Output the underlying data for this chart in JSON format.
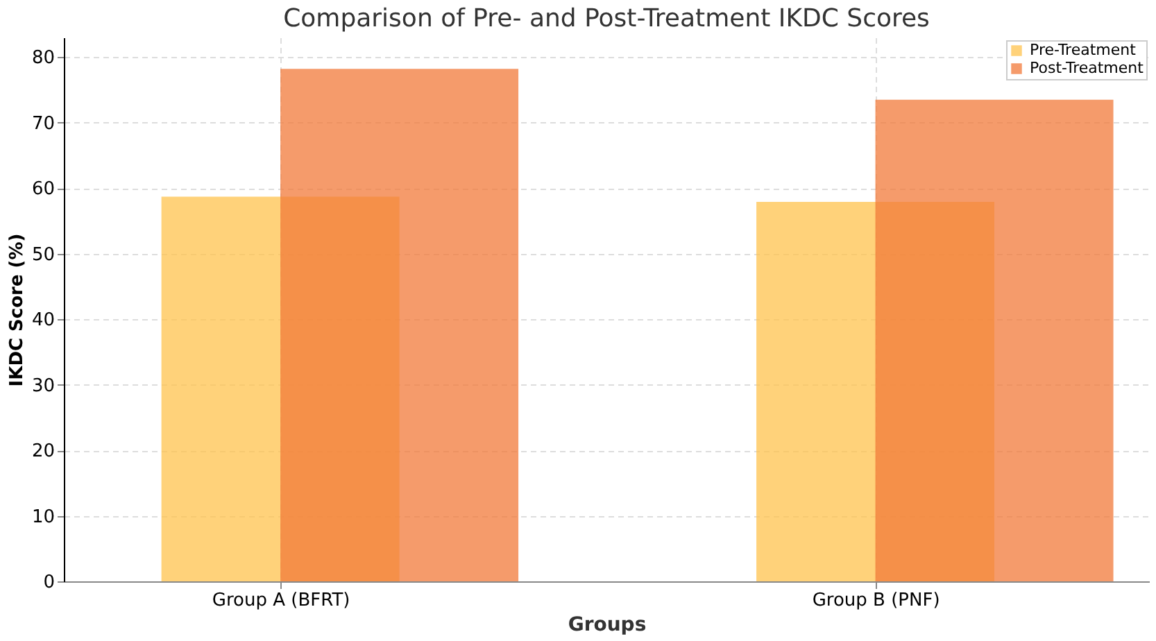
{
  "chart_data": {
    "type": "bar",
    "title": "Comparison of Pre- and Post-Treatment IKDC Scores",
    "xlabel": "Groups",
    "ylabel": "IKDC Score (%)",
    "categories": [
      "Group A (BFRT)",
      "Group B (PNF)"
    ],
    "series": [
      {
        "name": "Pre-Treatment",
        "color": "#ffc34d",
        "values": [
          58.7,
          57.9
        ]
      },
      {
        "name": "Post-Treatment",
        "color": "#f17a3a",
        "values": [
          78.2,
          73.5
        ]
      }
    ],
    "ylim": [
      0,
      83
    ],
    "yticks": [
      0,
      10,
      20,
      30,
      40,
      50,
      60,
      70,
      80
    ],
    "grid": true,
    "legend": "top right"
  }
}
